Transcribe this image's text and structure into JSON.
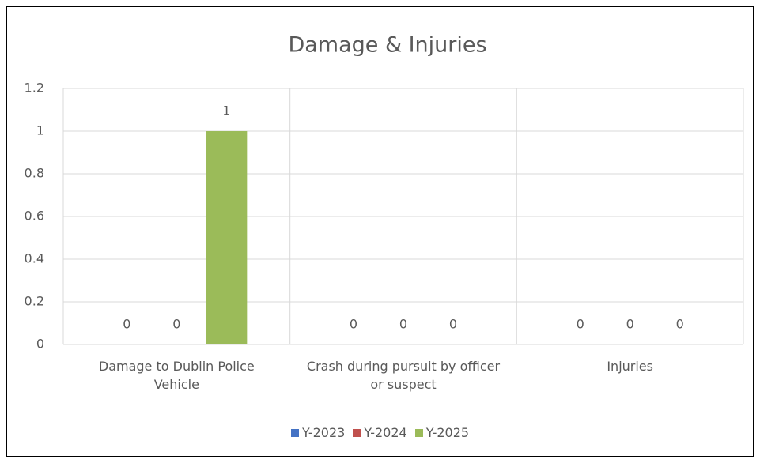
{
  "chart_data": {
    "type": "bar",
    "title": "Damage & Injuries",
    "categories": [
      "Damage to Dublin Police Vehicle",
      "Crash during pursuit by officer or suspect",
      "Injuries"
    ],
    "series": [
      {
        "name": "Y-2023",
        "color": "#4472c4",
        "values": [
          0,
          0,
          0
        ]
      },
      {
        "name": "Y-2024",
        "color": "#c0504d",
        "values": [
          0,
          0,
          0
        ]
      },
      {
        "name": "Y-2025",
        "color": "#9bbb59",
        "values": [
          1,
          0,
          0
        ]
      }
    ],
    "ylim": [
      0,
      1.2
    ],
    "yticks": [
      0,
      0.2,
      0.4,
      0.6,
      0.8,
      1,
      1.2
    ],
    "grid": true,
    "legend": "bottom"
  }
}
